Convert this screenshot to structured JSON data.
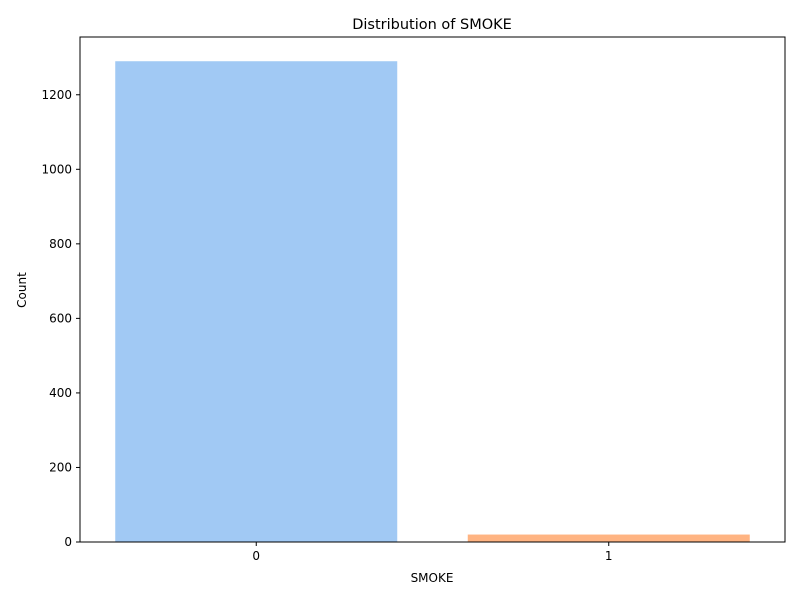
{
  "chart_data": {
    "type": "bar",
    "title": "Distribution of SMOKE",
    "xlabel": "SMOKE",
    "ylabel": "Count",
    "categories": [
      "0",
      "1"
    ],
    "values": [
      1290,
      20
    ],
    "colors": [
      "#a1c9f4",
      "#ffb482"
    ],
    "ylim": [
      0,
      1355
    ],
    "yticks": [
      0,
      200,
      400,
      600,
      800,
      1000,
      1200
    ],
    "grid": false,
    "legend": "none"
  }
}
